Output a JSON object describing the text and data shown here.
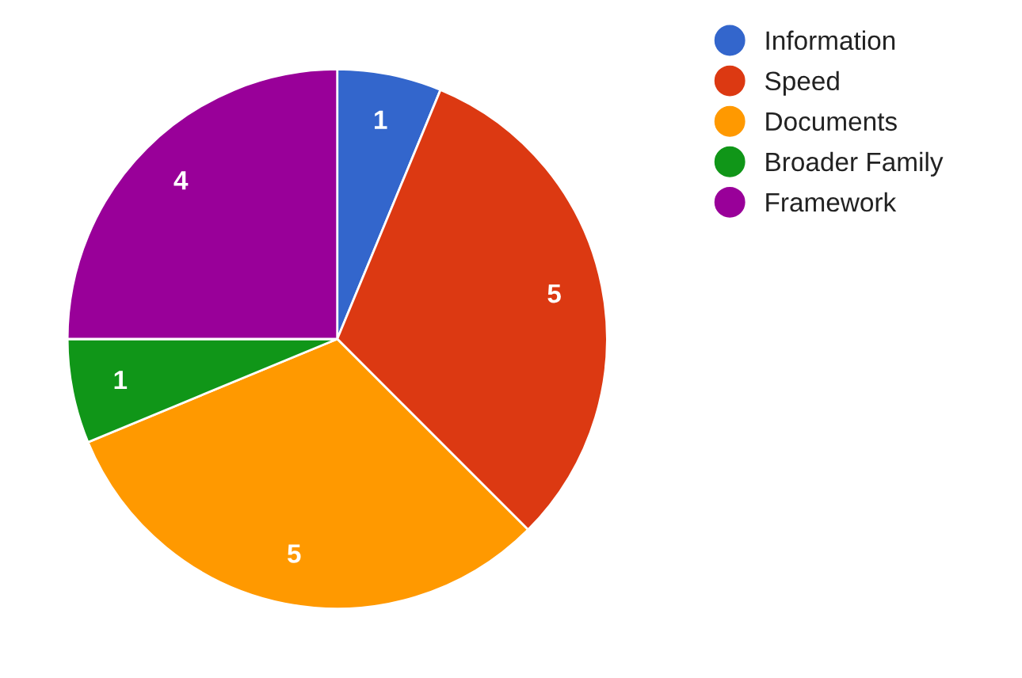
{
  "chart_data": {
    "type": "pie",
    "categories": [
      "Information",
      "Speed",
      "Documents",
      "Broader Family",
      "Framework"
    ],
    "values": [
      1,
      5,
      5,
      1,
      4
    ],
    "colors": [
      "#3366cc",
      "#dc3912",
      "#ff9900",
      "#109618",
      "#990099"
    ],
    "data_labels": true,
    "legend": "top right"
  }
}
